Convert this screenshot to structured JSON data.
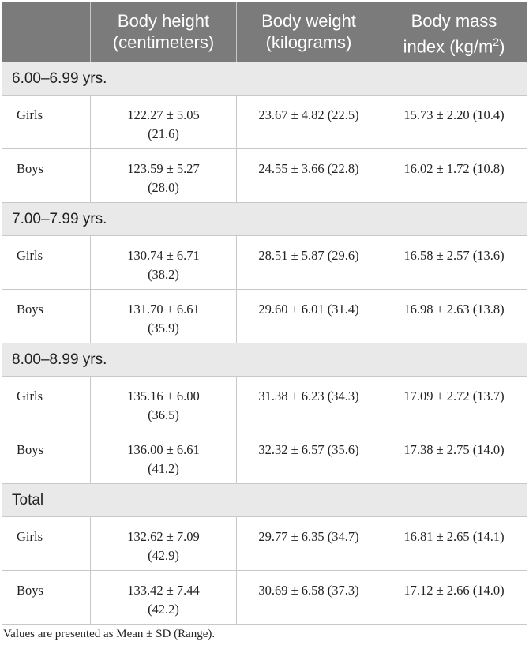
{
  "table": {
    "headers": [
      "",
      "Body height (centimeters)",
      "Body weight (kilograms)",
      "Body mass index (kg/m2)"
    ],
    "header_lines": {
      "height": [
        "Body height",
        "(centimeters)"
      ],
      "weight": [
        "Body weight",
        "(kilograms)"
      ],
      "bmi_line1": "Body mass",
      "bmi_line2_prefix": "index (kg/m",
      "bmi_sup": "2",
      "bmi_line2_suffix": ")"
    },
    "groups": [
      {
        "label": "6.00–6.99 yrs.",
        "rows": [
          {
            "label": "Girls",
            "height": [
              "122.27 ± 5.05",
              "(21.6)"
            ],
            "weight": "23.67 ± 4.82 (22.5)",
            "bmi": "15.73 ± 2.20 (10.4)"
          },
          {
            "label": "Boys",
            "height": [
              "123.59 ± 5.27",
              "(28.0)"
            ],
            "weight": "24.55 ± 3.66 (22.8)",
            "bmi": "16.02 ± 1.72 (10.8)"
          }
        ]
      },
      {
        "label": "7.00–7.99 yrs.",
        "rows": [
          {
            "label": "Girls",
            "height": [
              "130.74 ± 6.71",
              "(38.2)"
            ],
            "weight": "28.51 ± 5.87 (29.6)",
            "bmi": "16.58 ± 2.57 (13.6)"
          },
          {
            "label": "Boys",
            "height": [
              "131.70 ± 6.61",
              "(35.9)"
            ],
            "weight": "29.60 ± 6.01 (31.4)",
            "bmi": "16.98 ± 2.63 (13.8)"
          }
        ]
      },
      {
        "label": "8.00–8.99 yrs.",
        "rows": [
          {
            "label": "Girls",
            "height": [
              "135.16 ± 6.00",
              "(36.5)"
            ],
            "weight": "31.38 ± 6.23 (34.3)",
            "bmi": "17.09 ± 2.72 (13.7)"
          },
          {
            "label": "Boys",
            "height": [
              "136.00 ± 6.61",
              "(41.2)"
            ],
            "weight": "32.32 ± 6.57 (35.6)",
            "bmi": "17.38 ± 2.75 (14.0)"
          }
        ]
      },
      {
        "label": "Total",
        "rows": [
          {
            "label": "Girls",
            "height": [
              "132.62 ± 7.09",
              "(42.9)"
            ],
            "weight": "29.77 ± 6.35 (34.7)",
            "bmi": "16.81 ± 2.65 (14.1)"
          },
          {
            "label": "Boys",
            "height": [
              "133.42 ± 7.44",
              "(42.2)"
            ],
            "weight": "30.69 ± 6.58 (37.3)",
            "bmi": "17.12 ± 2.66 (14.0)"
          }
        ]
      }
    ]
  },
  "footnote": "Values are presented as Mean ± SD (Range)."
}
